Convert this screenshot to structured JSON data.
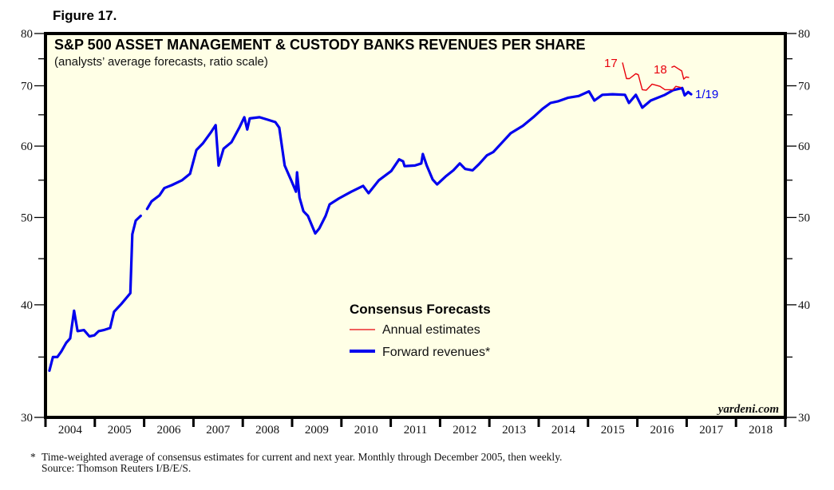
{
  "figure_label": "Figure 17.",
  "footnote": {
    "marker": "*",
    "text": "Time-weighted average of consensus estimates for current and next year. Monthly through December 2005, then weekly.",
    "source": "Source: Thomson Reuters I/B/E/S."
  },
  "colors": {
    "plot_background": "#ffffe6",
    "forward_revenues": "#0000ee",
    "annual_estimates": "#e8000b",
    "frame": "#000000"
  },
  "chart_data": {
    "type": "line",
    "title": "S&P 500 ASSET MANAGEMENT & CUSTODY BANKS REVENUES PER SHARE",
    "subtitle": "(analysts’ average forecasts, ratio scale)",
    "xlabel": "",
    "ylabel": "",
    "y_scale": "log",
    "ylim": [
      30,
      80
    ],
    "xlim": [
      2004,
      2019
    ],
    "y_ticks_major": [
      30,
      40,
      50,
      60,
      70,
      80
    ],
    "y_ticks_minor": [
      35,
      45,
      55,
      65,
      75
    ],
    "x_tick_labels": [
      "2004",
      "2005",
      "2006",
      "2007",
      "2008",
      "2009",
      "2010",
      "2011",
      "2012",
      "2013",
      "2014",
      "2015",
      "2016",
      "2017",
      "2018"
    ],
    "grid": false,
    "legend": {
      "title": "Consensus Forecasts",
      "placement": "center-bottom",
      "entries": [
        {
          "name": "Annual estimates",
          "series": "annual_estimates"
        },
        {
          "name": "Forward revenues*",
          "series": "forward_revenues"
        }
      ]
    },
    "annotations": [
      {
        "text": "17",
        "series": "annual_2017",
        "color": "red"
      },
      {
        "text": "18",
        "series": "annual_2018",
        "color": "red"
      },
      {
        "text": "1/19",
        "series": "forward_revenues",
        "color": "blue"
      }
    ],
    "watermark": "yardeni.com",
    "series": [
      {
        "name": "Forward revenues*",
        "key": "forward_revenues",
        "segments": [
          [
            [
              2004.08,
              33.8
            ],
            [
              2004.15,
              35.0
            ],
            [
              2004.24,
              35.0
            ],
            [
              2004.32,
              35.5
            ],
            [
              2004.42,
              36.3
            ],
            [
              2004.5,
              36.7
            ],
            [
              2004.58,
              39.4
            ],
            [
              2004.65,
              37.4
            ],
            [
              2004.78,
              37.5
            ],
            [
              2004.89,
              36.9
            ],
            [
              2004.99,
              37.0
            ],
            [
              2005.08,
              37.4
            ],
            [
              2005.18,
              37.5
            ],
            [
              2005.31,
              37.7
            ],
            [
              2005.39,
              39.3
            ],
            [
              2005.54,
              40.1
            ],
            [
              2005.72,
              41.2
            ],
            [
              2005.76,
              47.9
            ],
            [
              2005.83,
              49.6
            ],
            [
              2005.93,
              50.2
            ]
          ],
          [
            [
              2006.06,
              51.1
            ],
            [
              2006.15,
              52.1
            ],
            [
              2006.31,
              52.9
            ],
            [
              2006.41,
              53.9
            ],
            [
              2006.56,
              54.3
            ],
            [
              2006.77,
              55.0
            ],
            [
              2006.93,
              55.9
            ],
            [
              2007.06,
              59.4
            ],
            [
              2007.19,
              60.4
            ],
            [
              2007.35,
              62.1
            ],
            [
              2007.45,
              63.3
            ],
            [
              2007.51,
              57.1
            ],
            [
              2007.61,
              59.6
            ],
            [
              2007.77,
              60.6
            ],
            [
              2007.93,
              62.9
            ],
            [
              2008.03,
              64.6
            ],
            [
              2008.09,
              62.6
            ],
            [
              2008.14,
              64.4
            ],
            [
              2008.34,
              64.6
            ],
            [
              2008.5,
              64.2
            ],
            [
              2008.66,
              63.8
            ],
            [
              2008.74,
              62.9
            ],
            [
              2008.85,
              57.1
            ],
            [
              2008.98,
              55.0
            ],
            [
              2009.08,
              53.4
            ],
            [
              2009.1,
              56.1
            ],
            [
              2009.15,
              52.6
            ],
            [
              2009.23,
              50.8
            ],
            [
              2009.32,
              50.2
            ],
            [
              2009.42,
              48.7
            ],
            [
              2009.47,
              48.0
            ],
            [
              2009.55,
              48.6
            ],
            [
              2009.68,
              50.2
            ],
            [
              2009.76,
              51.7
            ],
            [
              2009.95,
              52.5
            ],
            [
              2010.2,
              53.4
            ],
            [
              2010.44,
              54.2
            ],
            [
              2010.55,
              53.2
            ],
            [
              2010.76,
              55.0
            ],
            [
              2011.01,
              56.3
            ],
            [
              2011.17,
              58.0
            ],
            [
              2011.25,
              57.7
            ],
            [
              2011.28,
              57.0
            ],
            [
              2011.49,
              57.1
            ],
            [
              2011.62,
              57.4
            ],
            [
              2011.65,
              58.8
            ],
            [
              2011.73,
              57.1
            ],
            [
              2011.85,
              55.1
            ],
            [
              2011.94,
              54.4
            ],
            [
              2012.11,
              55.5
            ],
            [
              2012.27,
              56.4
            ],
            [
              2012.4,
              57.4
            ],
            [
              2012.51,
              56.6
            ],
            [
              2012.66,
              56.4
            ],
            [
              2012.79,
              57.3
            ],
            [
              2012.95,
              58.6
            ],
            [
              2013.08,
              59.1
            ],
            [
              2013.24,
              60.4
            ],
            [
              2013.43,
              62.0
            ],
            [
              2013.68,
              63.2
            ],
            [
              2013.89,
              64.6
            ],
            [
              2014.08,
              66.0
            ],
            [
              2014.24,
              67.0
            ],
            [
              2014.4,
              67.3
            ],
            [
              2014.6,
              67.9
            ],
            [
              2014.81,
              68.2
            ],
            [
              2015.02,
              69.0
            ],
            [
              2015.13,
              67.4
            ],
            [
              2015.29,
              68.4
            ],
            [
              2015.5,
              68.5
            ],
            [
              2015.75,
              68.4
            ],
            [
              2015.83,
              67.0
            ],
            [
              2015.97,
              68.4
            ],
            [
              2016.1,
              66.2
            ],
            [
              2016.27,
              67.4
            ],
            [
              2016.56,
              68.4
            ],
            [
              2016.72,
              69.2
            ],
            [
              2016.91,
              69.6
            ],
            [
              2016.96,
              68.3
            ],
            [
              2017.03,
              68.9
            ],
            [
              2017.09,
              68.5
            ]
          ]
        ]
      },
      {
        "name": "Annual estimates 2017",
        "key": "annual_2017",
        "segments": [
          [
            [
              2015.7,
              74.2
            ],
            [
              2015.78,
              71.3
            ],
            [
              2015.84,
              71.3
            ],
            [
              2015.97,
              72.2
            ],
            [
              2016.02,
              72.0
            ],
            [
              2016.1,
              69.3
            ],
            [
              2016.18,
              69.2
            ],
            [
              2016.3,
              70.3
            ],
            [
              2016.46,
              69.9
            ],
            [
              2016.56,
              69.3
            ],
            [
              2016.72,
              69.3
            ],
            [
              2016.78,
              69.9
            ],
            [
              2016.88,
              69.7
            ]
          ]
        ]
      },
      {
        "name": "Annual estimates 2018",
        "key": "annual_2018",
        "segments": [
          [
            [
              2016.7,
              73.4
            ],
            [
              2016.75,
              73.6
            ],
            [
              2016.83,
              73.1
            ],
            [
              2016.9,
              72.7
            ],
            [
              2016.94,
              71.2
            ],
            [
              2016.99,
              71.6
            ],
            [
              2017.04,
              71.5
            ]
          ]
        ]
      }
    ]
  }
}
